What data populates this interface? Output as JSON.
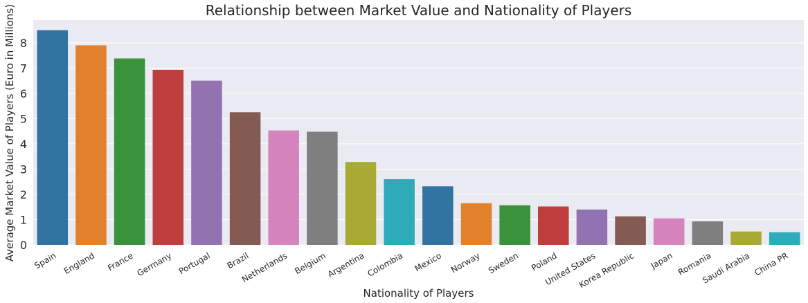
{
  "chart_data": {
    "type": "bar",
    "title": "Relationship between Market Value and Nationality of Players",
    "xlabel": "Nationality of Players",
    "ylabel": "Average Market Value of Players (Euro in Millions)",
    "categories": [
      "Spain",
      "England",
      "France",
      "Germany",
      "Portugal",
      "Brazil",
      "Netherlands",
      "Belgium",
      "Argentina",
      "Colombia",
      "Mexico",
      "Norway",
      "Sweden",
      "Poland",
      "United States",
      "Korea Republic",
      "Japan",
      "Romania",
      "Saudi Arabia",
      "China PR"
    ],
    "values": [
      8.5,
      7.9,
      7.38,
      6.93,
      6.5,
      5.25,
      4.53,
      4.48,
      3.28,
      2.6,
      2.32,
      1.65,
      1.57,
      1.52,
      1.4,
      1.13,
      1.05,
      0.93,
      0.53,
      0.5
    ],
    "ylim": [
      0,
      8.9
    ],
    "yticks": [
      0,
      1,
      2,
      3,
      4,
      5,
      6,
      7,
      8
    ],
    "grid": true,
    "colors": [
      "#3274a1",
      "#e1812c",
      "#3a923a",
      "#c03d3e",
      "#9372b2",
      "#845b53",
      "#d684bd",
      "#7f7f7f",
      "#a9aa35",
      "#2eabb8",
      "#3274a1",
      "#e1812c",
      "#3a923a",
      "#c03d3e",
      "#9372b2",
      "#845b53",
      "#d684bd",
      "#7f7f7f",
      "#a9aa35",
      "#2eabb8"
    ],
    "background": "#eaeaf2",
    "gridcolor": "#ffffff"
  }
}
